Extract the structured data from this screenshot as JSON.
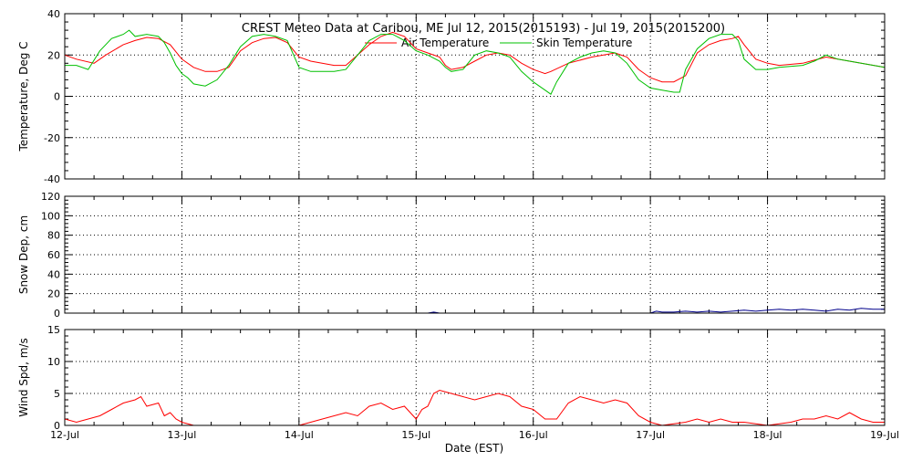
{
  "chart_data": {
    "type": "line",
    "title": "CREST Meteo Data at Caribou, ME   Jul 12, 2015(2015193) - Jul 19, 2015(2015200)",
    "xlabel": "Date (EST)",
    "x_ticks": [
      "12-Jul",
      "13-Jul",
      "14-Jul",
      "15-Jul",
      "16-Jul",
      "17-Jul",
      "18-Jul",
      "19-Jul"
    ],
    "xlim_days": [
      0,
      7
    ],
    "legend_position": "top-right",
    "panels": [
      {
        "name": "temperature",
        "ylabel": "Temperature, Deg C",
        "ylim": [
          -40,
          40
        ],
        "yticks": [
          -40,
          -20,
          0,
          20,
          40
        ],
        "grid": true,
        "series": [
          {
            "name": "Air Temperature",
            "color": "#ff0000",
            "points": [
              [
                0,
                20
              ],
              [
                0.1,
                18
              ],
              [
                0.25,
                16
              ],
              [
                0.35,
                20
              ],
              [
                0.5,
                25
              ],
              [
                0.6,
                27
              ],
              [
                0.7,
                28.5
              ],
              [
                0.8,
                28
              ],
              [
                0.9,
                25
              ],
              [
                1.0,
                18
              ],
              [
                1.1,
                14
              ],
              [
                1.2,
                12
              ],
              [
                1.3,
                12
              ],
              [
                1.4,
                14
              ],
              [
                1.5,
                22
              ],
              [
                1.6,
                26
              ],
              [
                1.7,
                28
              ],
              [
                1.8,
                28.5
              ],
              [
                1.9,
                26
              ],
              [
                2.0,
                19
              ],
              [
                2.1,
                17
              ],
              [
                2.3,
                15
              ],
              [
                2.4,
                15
              ],
              [
                2.5,
                20
              ],
              [
                2.6,
                25
              ],
              [
                2.7,
                29
              ],
              [
                2.8,
                31
              ],
              [
                2.9,
                29
              ],
              [
                3.0,
                23
              ],
              [
                3.1,
                21
              ],
              [
                3.2,
                19
              ],
              [
                3.25,
                15
              ],
              [
                3.3,
                13
              ],
              [
                3.4,
                14
              ],
              [
                3.5,
                17
              ],
              [
                3.6,
                20
              ],
              [
                3.7,
                21
              ],
              [
                3.8,
                20
              ],
              [
                3.9,
                16
              ],
              [
                4.0,
                13
              ],
              [
                4.1,
                11
              ],
              [
                4.15,
                12
              ],
              [
                4.3,
                16
              ],
              [
                4.5,
                19
              ],
              [
                4.7,
                21
              ],
              [
                4.8,
                19
              ],
              [
                4.9,
                13
              ],
              [
                5.0,
                9
              ],
              [
                5.1,
                7
              ],
              [
                5.2,
                7
              ],
              [
                5.3,
                10
              ],
              [
                5.4,
                21
              ],
              [
                5.5,
                25
              ],
              [
                5.6,
                27
              ],
              [
                5.7,
                28
              ],
              [
                5.75,
                29
              ],
              [
                5.8,
                25
              ],
              [
                5.9,
                18
              ],
              [
                6.0,
                16
              ],
              [
                6.1,
                15
              ],
              [
                6.3,
                16
              ],
              [
                6.5,
                19
              ],
              [
                6.6,
                18
              ],
              [
                6.8,
                16
              ],
              [
                7.0,
                14
              ]
            ]
          },
          {
            "name": "Skin Temperature",
            "color": "#00c000",
            "points": [
              [
                0,
                15
              ],
              [
                0.1,
                15
              ],
              [
                0.2,
                13
              ],
              [
                0.3,
                22
              ],
              [
                0.4,
                28
              ],
              [
                0.5,
                30
              ],
              [
                0.55,
                32
              ],
              [
                0.6,
                29
              ],
              [
                0.7,
                30
              ],
              [
                0.8,
                29
              ],
              [
                0.85,
                26
              ],
              [
                0.9,
                21
              ],
              [
                0.95,
                15
              ],
              [
                1.0,
                11
              ],
              [
                1.05,
                9
              ],
              [
                1.1,
                6
              ],
              [
                1.15,
                5.5
              ],
              [
                1.2,
                5
              ],
              [
                1.3,
                8
              ],
              [
                1.4,
                15
              ],
              [
                1.5,
                24
              ],
              [
                1.6,
                29
              ],
              [
                1.7,
                30
              ],
              [
                1.8,
                29
              ],
              [
                1.9,
                27
              ],
              [
                2.0,
                14
              ],
              [
                2.1,
                12
              ],
              [
                2.3,
                12
              ],
              [
                2.4,
                13
              ],
              [
                2.5,
                20
              ],
              [
                2.6,
                27
              ],
              [
                2.7,
                30
              ],
              [
                2.8,
                30
              ],
              [
                2.9,
                27
              ],
              [
                3.0,
                22
              ],
              [
                3.1,
                20
              ],
              [
                3.2,
                17
              ],
              [
                3.25,
                14
              ],
              [
                3.3,
                12
              ],
              [
                3.4,
                13
              ],
              [
                3.5,
                20
              ],
              [
                3.6,
                22
              ],
              [
                3.7,
                21
              ],
              [
                3.8,
                19
              ],
              [
                3.9,
                12
              ],
              [
                4.0,
                7
              ],
              [
                4.1,
                3
              ],
              [
                4.15,
                1
              ],
              [
                4.2,
                7
              ],
              [
                4.3,
                16
              ],
              [
                4.4,
                19
              ],
              [
                4.5,
                21
              ],
              [
                4.6,
                22
              ],
              [
                4.7,
                21
              ],
              [
                4.8,
                16
              ],
              [
                4.9,
                8
              ],
              [
                5.0,
                4
              ],
              [
                5.1,
                3
              ],
              [
                5.2,
                2
              ],
              [
                5.25,
                2
              ],
              [
                5.3,
                13
              ],
              [
                5.4,
                23
              ],
              [
                5.5,
                28
              ],
              [
                5.6,
                30
              ],
              [
                5.7,
                30
              ],
              [
                5.75,
                27
              ],
              [
                5.8,
                18
              ],
              [
                5.9,
                13
              ],
              [
                6.0,
                13
              ],
              [
                6.1,
                14
              ],
              [
                6.3,
                15
              ],
              [
                6.4,
                17
              ],
              [
                6.5,
                20
              ],
              [
                6.6,
                18
              ],
              [
                6.8,
                16
              ],
              [
                7.0,
                14
              ]
            ]
          }
        ]
      },
      {
        "name": "snow-depth",
        "ylabel": "Snow Dep, cm",
        "ylim": [
          0,
          120
        ],
        "yticks": [
          0,
          20,
          40,
          60,
          80,
          100,
          120
        ],
        "grid": true,
        "series": [
          {
            "name": "",
            "color": "#00008b",
            "points": [
              [
                0,
                0
              ],
              [
                3.1,
                0
              ],
              [
                3.15,
                1
              ],
              [
                3.2,
                0
              ],
              [
                4.0,
                0
              ],
              [
                4.1,
                0
              ],
              [
                5.0,
                0
              ],
              [
                5.05,
                2
              ],
              [
                5.1,
                1
              ],
              [
                5.2,
                1
              ],
              [
                5.3,
                2
              ],
              [
                5.4,
                1
              ],
              [
                5.5,
                2
              ],
              [
                5.6,
                1
              ],
              [
                5.7,
                2
              ],
              [
                5.8,
                3
              ],
              [
                5.9,
                2
              ],
              [
                6.0,
                3
              ],
              [
                6.1,
                4
              ],
              [
                6.2,
                3
              ],
              [
                6.3,
                4
              ],
              [
                6.4,
                3
              ],
              [
                6.5,
                2
              ],
              [
                6.6,
                4
              ],
              [
                6.7,
                3
              ],
              [
                6.8,
                5
              ],
              [
                6.9,
                4
              ],
              [
                7.0,
                4
              ]
            ]
          }
        ]
      },
      {
        "name": "wind-speed",
        "ylabel": "Wind Spd, m/s",
        "ylim": [
          0,
          15
        ],
        "yticks": [
          0,
          5,
          10,
          15
        ],
        "grid": true,
        "series": [
          {
            "name": "",
            "color": "#ff0000",
            "points": [
              [
                0,
                1
              ],
              [
                0.1,
                0.5
              ],
              [
                0.2,
                1
              ],
              [
                0.3,
                1.5
              ],
              [
                0.4,
                2.5
              ],
              [
                0.5,
                3.5
              ],
              [
                0.6,
                4
              ],
              [
                0.65,
                4.5
              ],
              [
                0.7,
                3
              ],
              [
                0.8,
                3.5
              ],
              [
                0.85,
                1.5
              ],
              [
                0.9,
                2
              ],
              [
                0.95,
                1
              ],
              [
                1.0,
                0.5
              ],
              [
                1.1,
                0
              ],
              [
                2.0,
                0
              ],
              [
                2.1,
                0.5
              ],
              [
                2.2,
                1
              ],
              [
                2.3,
                1.5
              ],
              [
                2.4,
                2
              ],
              [
                2.5,
                1.5
              ],
              [
                2.6,
                3
              ],
              [
                2.7,
                3.5
              ],
              [
                2.8,
                2.5
              ],
              [
                2.9,
                3
              ],
              [
                3.0,
                1
              ],
              [
                3.05,
                2.5
              ],
              [
                3.1,
                3
              ],
              [
                3.15,
                5
              ],
              [
                3.2,
                5.5
              ],
              [
                3.3,
                5
              ],
              [
                3.4,
                4.5
              ],
              [
                3.5,
                4
              ],
              [
                3.6,
                4.5
              ],
              [
                3.7,
                5
              ],
              [
                3.8,
                4.5
              ],
              [
                3.9,
                3
              ],
              [
                4.0,
                2.5
              ],
              [
                4.1,
                1
              ],
              [
                4.2,
                1
              ],
              [
                4.3,
                3.5
              ],
              [
                4.4,
                4.5
              ],
              [
                4.5,
                4
              ],
              [
                4.6,
                3.5
              ],
              [
                4.7,
                4
              ],
              [
                4.8,
                3.5
              ],
              [
                4.9,
                1.5
              ],
              [
                5.0,
                0.5
              ],
              [
                5.1,
                0
              ],
              [
                5.3,
                0.5
              ],
              [
                5.4,
                1
              ],
              [
                5.5,
                0.5
              ],
              [
                5.6,
                1
              ],
              [
                5.7,
                0.5
              ],
              [
                5.8,
                0.5
              ],
              [
                6.0,
                0
              ],
              [
                6.2,
                0.5
              ],
              [
                6.3,
                1
              ],
              [
                6.4,
                1
              ],
              [
                6.5,
                1.5
              ],
              [
                6.6,
                1
              ],
              [
                6.7,
                2
              ],
              [
                6.8,
                1
              ],
              [
                6.9,
                0.5
              ],
              [
                7.0,
                0.5
              ]
            ]
          }
        ]
      }
    ]
  }
}
